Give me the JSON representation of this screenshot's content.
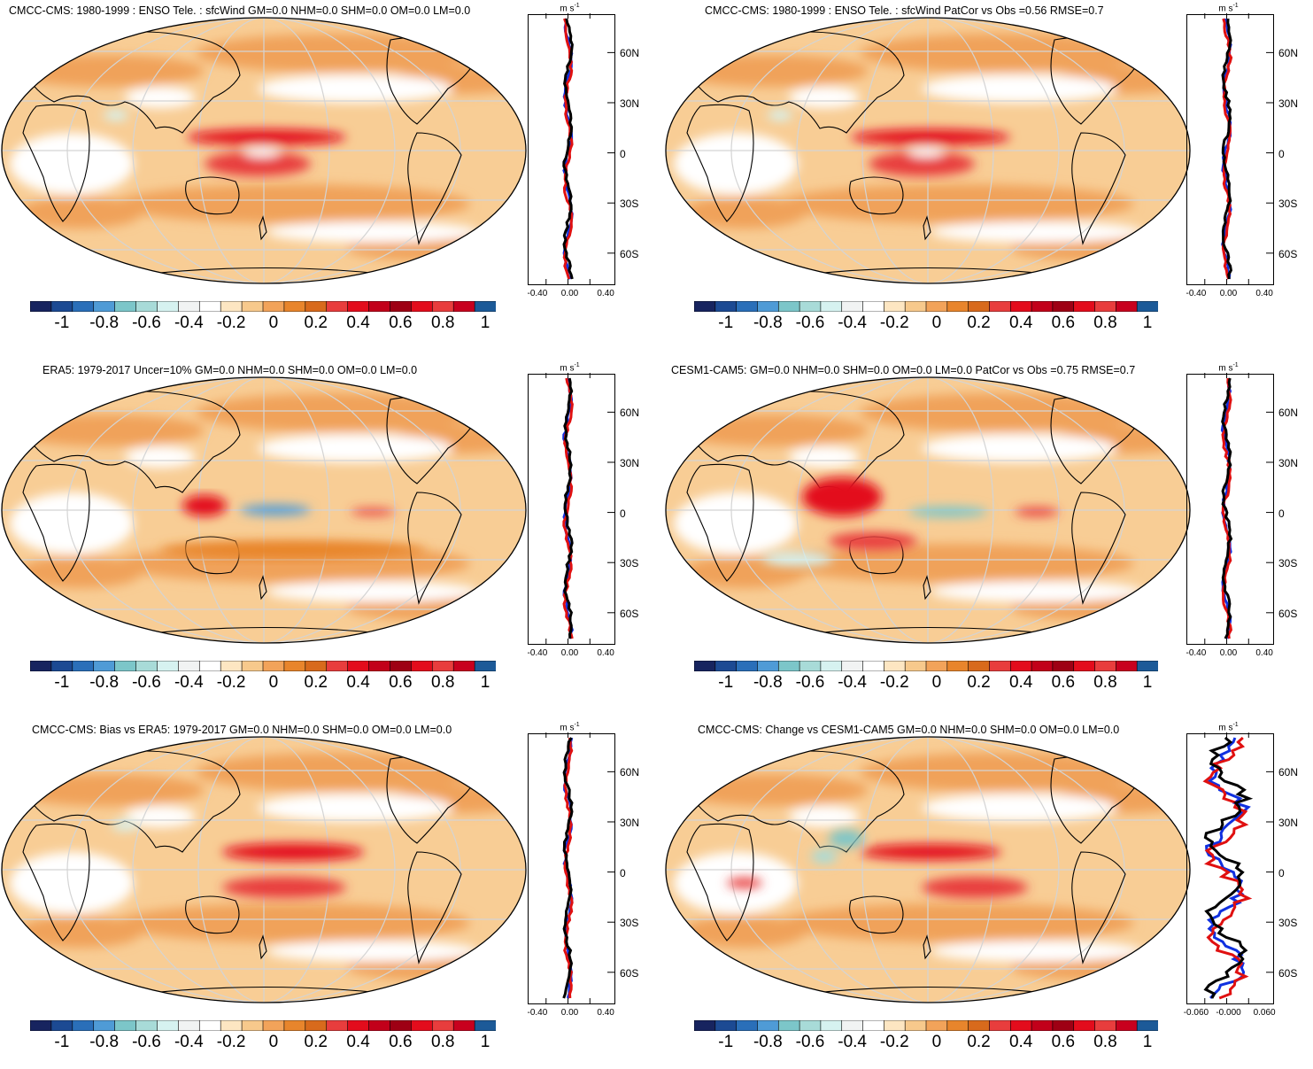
{
  "figure": {
    "variable": "sfcWind"
  },
  "colorbar": {
    "colors": [
      "#17245f",
      "#1c4a93",
      "#2a6fb9",
      "#4f9bd6",
      "#7cc6c9",
      "#a8dbd8",
      "#d6f2f0",
      "#f1f3f3",
      "#ffffff",
      "#fde6c2",
      "#f7c98c",
      "#f2a35a",
      "#e8852c",
      "#d86a1c",
      "#e83d3d",
      "#e30c1c",
      "#c2001a",
      "#9e0014",
      "#e30c1c",
      "#e83d3d",
      "#c8001e",
      "#1c5a98"
    ],
    "labels": [
      "-1",
      "-0.8",
      "-0.6",
      "-0.4",
      "-0.2",
      "0",
      "0.2",
      "0.4",
      "0.6",
      "0.8",
      "1"
    ]
  },
  "profile_unit": "m s",
  "profile_unit_exp": "-1",
  "lat_labels": [
    "60N",
    "30N",
    "0",
    "30S",
    "60S"
  ],
  "panels": [
    {
      "id": "cmcc-tele",
      "title": "CMCC-CMS: 1980-1999 : ENSO Tele. : sfcWind GM=0.0 NHM=0.0 SHM=0.0 OM=0.0 LM=0.0",
      "xticks": [
        "-0.40",
        "0.00",
        "0.40"
      ]
    },
    {
      "id": "cmcc-patcor",
      "title": "CMCC-CMS: 1980-1999 : ENSO Tele. : sfcWind PatCor vs Obs =0.56 RMSE=0.7",
      "xticks": [
        "-0.40",
        "0.00",
        "0.40"
      ]
    },
    {
      "id": "era5",
      "title": "ERA5: 1979-2017 Uncer=10% GM=0.0 NHM=0.0 SHM=0.0 OM=0.0 LM=0.0",
      "xticks": [
        "-0.40",
        "0.00",
        "0.40"
      ]
    },
    {
      "id": "cesm",
      "title": "CESM1-CAM5: GM=0.0 NHM=0.0 SHM=0.0 OM=0.0 LM=0.0 PatCor vs Obs =0.75 RMSE=0.7",
      "xticks": [
        "-0.40",
        "0.00",
        "0.40"
      ]
    },
    {
      "id": "bias",
      "title": "CMCC-CMS: Bias vs ERA5: 1979-2017 GM=0.0 NHM=0.0 SHM=0.0 OM=0.0 LM=0.0",
      "xticks": [
        "-0.40",
        "0.00",
        "0.40"
      ]
    },
    {
      "id": "change",
      "title": "CMCC-CMS: Change vs CESM1-CAM5 GM=0.0 NHM=0.0 SHM=0.0 OM=0.0 LM=0.0",
      "xticks": [
        "-0.060",
        "-0.000",
        "0.060"
      ]
    }
  ]
}
